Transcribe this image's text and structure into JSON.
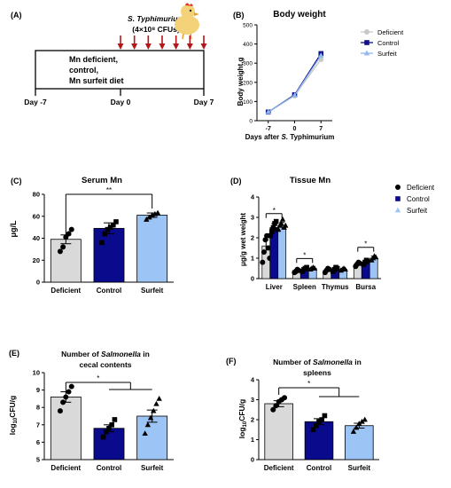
{
  "colors": {
    "deficient": "#d9d9d9",
    "control": "#0a0a8c",
    "surfeit": "#9cc4f4",
    "deficient_line": "#c8c8c8",
    "control_line": "#10108a",
    "surfeit_line": "#8fb8ee",
    "arrow": "#b2181b",
    "chick_body": "#f3d27a",
    "chick_comb": "#d9351f",
    "chick_leg": "#e5a12a"
  },
  "panel_a": {
    "label": "(A)",
    "infection_line1": "S. Typhimurium",
    "infection_line2": "(4×10⁸ CFUs)",
    "diet_line1": "Mn deficient,",
    "diet_line2": "control,",
    "diet_line3": "Mn surfeit diet",
    "day_start": "Day -7",
    "day_zero": "Day 0",
    "day_end": "Day 7",
    "arrow_count": 7,
    "chick_icon": "chick-icon"
  },
  "chart_data": [
    {
      "id": "B",
      "label": "(B)",
      "type": "line",
      "title": "Body weight",
      "xlabel": "Days after S. Typhimurium",
      "ylabel": "Body weight,g",
      "x": [
        -7,
        0,
        7
      ],
      "xticks": [
        "-7",
        "0",
        "7"
      ],
      "ylim": [
        0,
        500
      ],
      "yticks": [
        0,
        100,
        200,
        300,
        400,
        500
      ],
      "series": [
        {
          "name": "Deficient",
          "key": "deficient",
          "values": [
            45,
            130,
            320
          ]
        },
        {
          "name": "Control",
          "key": "control",
          "values": [
            45,
            135,
            350
          ]
        },
        {
          "name": "Surfeit",
          "key": "surfeit",
          "values": [
            45,
            132,
            340
          ]
        }
      ]
    },
    {
      "id": "C",
      "label": "(C)",
      "type": "bar",
      "title": "Serum Mn",
      "ylabel": "μg/L",
      "ylim": [
        0,
        80
      ],
      "yticks": [
        0,
        20,
        40,
        60,
        80
      ],
      "categories": [
        "Deficient",
        "Control",
        "Surfeit"
      ],
      "values": [
        39,
        49,
        61
      ],
      "errors": [
        4,
        5,
        2
      ],
      "points": [
        [
          28,
          32,
          41,
          44,
          48
        ],
        [
          36,
          44,
          48,
          50,
          52,
          55
        ],
        [
          57,
          59,
          61,
          62,
          63
        ]
      ],
      "significance": [
        {
          "from": 0,
          "to": 2,
          "text": "**"
        }
      ]
    },
    {
      "id": "D",
      "label": "(D)",
      "type": "bar",
      "title": "Tissue Mn",
      "ylabel": "μg/g wet weight",
      "ylim": [
        0,
        4
      ],
      "yticks": [
        0,
        1,
        2,
        3,
        4
      ],
      "categories": [
        "Liver",
        "Spleen",
        "Thymus",
        "Bursa"
      ],
      "legend": [
        "Deficient",
        "Control",
        "Surfeit"
      ],
      "series": [
        {
          "name": "Deficient",
          "key": "deficient",
          "values": [
            1.6,
            0.4,
            0.4,
            0.7
          ],
          "errors": [
            0.3,
            0.05,
            0.05,
            0.08
          ]
        },
        {
          "name": "Control",
          "key": "control",
          "values": [
            2.5,
            0.45,
            0.45,
            0.8
          ],
          "errors": [
            0.2,
            0.05,
            0.05,
            0.08
          ]
        },
        {
          "name": "Surfeit",
          "key": "surfeit",
          "values": [
            2.6,
            0.5,
            0.45,
            1.0
          ],
          "errors": [
            0.15,
            0.05,
            0.05,
            0.1
          ]
        }
      ],
      "points": [
        [
          [
            0.8,
            1.3,
            1.9,
            2.1,
            1.5,
            1.0
          ],
          [
            2.1,
            2.3,
            2.5,
            2.7,
            2.8,
            2.4
          ],
          [
            2.4,
            2.6,
            2.7,
            2.9,
            2.5,
            2.6
          ]
        ],
        [
          [
            0.3,
            0.35,
            0.45,
            0.4
          ],
          [
            0.35,
            0.45,
            0.5,
            0.55
          ],
          [
            0.45,
            0.5,
            0.55,
            0.5
          ]
        ],
        [
          [
            0.3,
            0.4,
            0.5,
            0.45
          ],
          [
            0.35,
            0.45,
            0.55,
            0.5
          ],
          [
            0.4,
            0.45,
            0.5,
            0.45
          ]
        ],
        [
          [
            0.6,
            0.7,
            0.8,
            0.75
          ],
          [
            0.7,
            0.8,
            0.9,
            0.85
          ],
          [
            0.9,
            1.0,
            1.1,
            1.05
          ]
        ]
      ],
      "significance": [
        {
          "group": 0,
          "from": 0,
          "to": 2,
          "text": "*"
        },
        {
          "group": 1,
          "from": 0,
          "to": 2,
          "text": "*"
        },
        {
          "group": 3,
          "from": 0,
          "to": 2,
          "text": "*"
        }
      ]
    },
    {
      "id": "E",
      "label": "(E)",
      "type": "bar",
      "title_line1": "Number of Salmonella in",
      "title_line2": "cecal contents",
      "ylabel": "log10CFU/g",
      "ylim": [
        5,
        10
      ],
      "yticks": [
        5,
        6,
        7,
        8,
        9,
        10
      ],
      "categories": [
        "Deficient",
        "Control",
        "Surfeit"
      ],
      "values": [
        8.6,
        6.8,
        7.5
      ],
      "errors": [
        0.3,
        0.2,
        0.35
      ],
      "points": [
        [
          7.8,
          8.3,
          8.6,
          8.9,
          9.2
        ],
        [
          6.3,
          6.6,
          6.8,
          7.0,
          7.3
        ],
        [
          6.5,
          7.0,
          7.4,
          7.8,
          8.2,
          8.5
        ]
      ],
      "significance": [
        {
          "from": 0,
          "to": 1,
          "to2": 2,
          "text": "*"
        }
      ]
    },
    {
      "id": "F",
      "label": "(F)",
      "type": "bar",
      "title_line1": "Number of Salmonella in",
      "title_line2": "spleens",
      "ylabel": "log10CFU/g",
      "ylim": [
        0,
        4
      ],
      "yticks": [
        0,
        1,
        2,
        3,
        4
      ],
      "categories": [
        "Deficient",
        "Control",
        "Surfeit"
      ],
      "values": [
        2.8,
        1.9,
        1.7
      ],
      "errors": [
        0.15,
        0.15,
        0.12
      ],
      "points": [
        [
          2.5,
          2.7,
          2.9,
          3.0,
          3.1
        ],
        [
          1.5,
          1.7,
          1.9,
          2.0,
          2.2
        ],
        [
          1.4,
          1.6,
          1.8,
          1.9,
          2.0
        ]
      ],
      "significance": [
        {
          "from": 0,
          "to": 1,
          "to2": 2,
          "text": "*"
        }
      ]
    }
  ]
}
